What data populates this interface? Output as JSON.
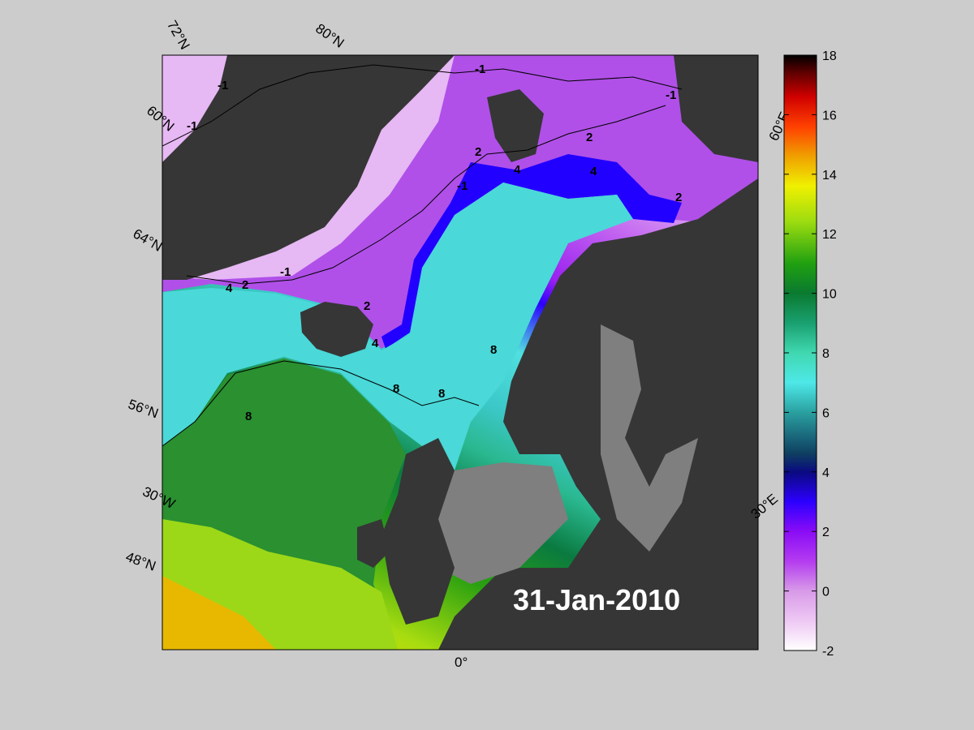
{
  "date_label": "31-Jan-2010",
  "lat_labels": [
    "72°N",
    "60°N",
    "64°N",
    "56°N",
    "48°N"
  ],
  "lon_labels": [
    "80°N",
    "30°W",
    "0°",
    "30°E",
    "60°E"
  ],
  "colorbar": {
    "ticks": [
      "18",
      "16",
      "14",
      "12",
      "10",
      "8",
      "6",
      "4",
      "2",
      "0",
      "-2"
    ],
    "min": -2,
    "max": 18
  },
  "contour_labels": [
    "-1",
    "-1",
    "-1",
    "-1",
    "-1",
    "-1",
    "2",
    "2",
    "2",
    "2",
    "2",
    "4",
    "4",
    "4",
    "4",
    "8",
    "8",
    "8",
    "8"
  ],
  "colors": {
    "background": "#cccccc",
    "land": "#363636",
    "masked_sea": "#7f7f7f",
    "date_text": "#ffffff"
  }
}
